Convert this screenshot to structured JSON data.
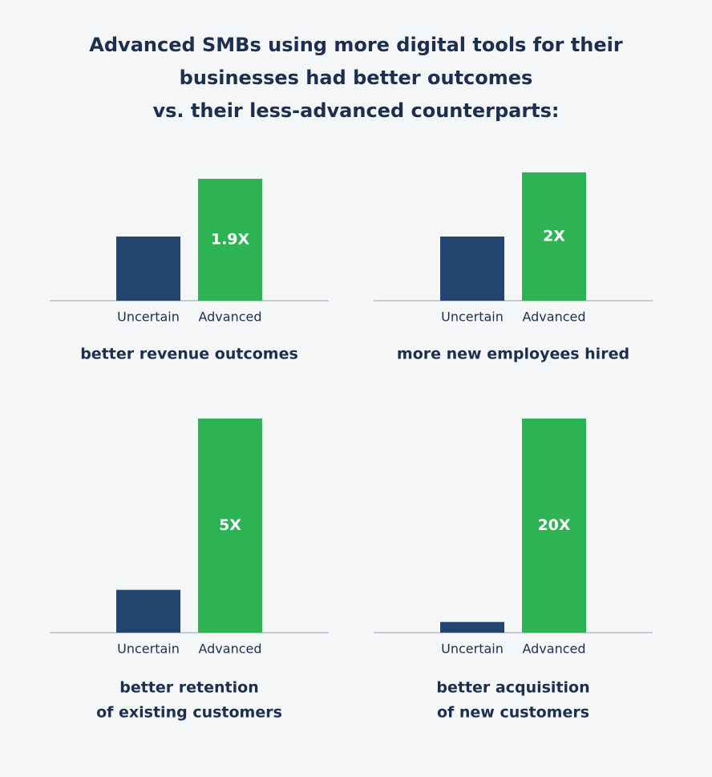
{
  "title": [
    "Advanced SMBs using more digital tools for their",
    "businesses had better outcomes",
    "vs. their less-advanced counterparts:"
  ],
  "chart_data": [
    {
      "type": "bar",
      "categories": [
        "Uncertain",
        "Advanced"
      ],
      "values": [
        1,
        1.9
      ],
      "value_labels": [
        null,
        "1.9X"
      ],
      "colors": [
        "#22446f",
        "#2db354"
      ],
      "ylim": [
        0,
        2
      ],
      "caption": [
        "better revenue outcomes"
      ]
    },
    {
      "type": "bar",
      "categories": [
        "Uncertain",
        "Advanced"
      ],
      "values": [
        1,
        2
      ],
      "value_labels": [
        null,
        "2X"
      ],
      "colors": [
        "#22446f",
        "#2db354"
      ],
      "ylim": [
        0,
        2
      ],
      "caption": [
        "more new employees hired"
      ]
    },
    {
      "type": "bar",
      "categories": [
        "Uncertain",
        "Advanced"
      ],
      "values": [
        1,
        5
      ],
      "value_labels": [
        null,
        "5X"
      ],
      "colors": [
        "#22446f",
        "#2db354"
      ],
      "ylim": [
        0,
        5
      ],
      "caption": [
        "better retention",
        "of existing customers"
      ]
    },
    {
      "type": "bar",
      "categories": [
        "Uncertain",
        "Advanced"
      ],
      "values": [
        1,
        20
      ],
      "value_labels": [
        null,
        "20X"
      ],
      "colors": [
        "#22446f",
        "#2db354"
      ],
      "ylim": [
        0,
        20
      ],
      "caption": [
        "better acquisition",
        "of new customers"
      ]
    }
  ]
}
